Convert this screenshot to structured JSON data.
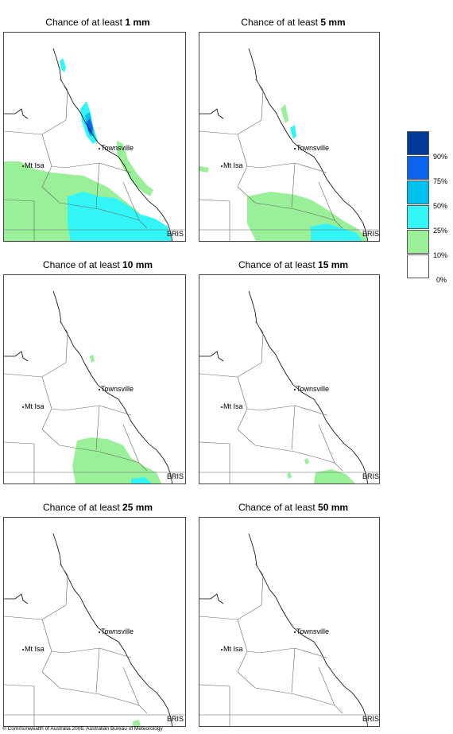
{
  "panels": [
    {
      "title_prefix": "Chance of at least ",
      "amount": "1 mm",
      "has_bris": true
    },
    {
      "title_prefix": "Chance of at least ",
      "amount": "5 mm",
      "has_bris": true
    },
    {
      "title_prefix": "Chance of at least ",
      "amount": "10 mm",
      "has_bris": true
    },
    {
      "title_prefix": "Chance of at least ",
      "amount": "15 mm",
      "has_bris": true
    },
    {
      "title_prefix": "Chance of at least ",
      "amount": "25 mm",
      "has_bris": true
    },
    {
      "title_prefix": "Chance of at least ",
      "amount": "50 mm",
      "has_bris": true
    }
  ],
  "places": {
    "townsville": "Townsville",
    "mt_isa": "Mt Isa",
    "bris": "BRIS"
  },
  "legend": {
    "bins": [
      {
        "color": "#003a99",
        "label": "90%"
      },
      {
        "color": "#0a64f0",
        "label": "75%"
      },
      {
        "color": "#00c0f0",
        "label": "50%"
      },
      {
        "color": "#33f5f5",
        "label": "25%"
      },
      {
        "color": "#99f099",
        "label": "10%"
      },
      {
        "color": "#ffffff",
        "label": "0%"
      }
    ]
  },
  "colors": {
    "p10": "#99f099",
    "p25": "#33f5f5",
    "p50": "#00c0f0",
    "p75": "#0a64f0",
    "p90": "#003a99"
  },
  "copyright": "© Commonwealth of Australia 2006, Australian Bureau of Meteorology"
}
